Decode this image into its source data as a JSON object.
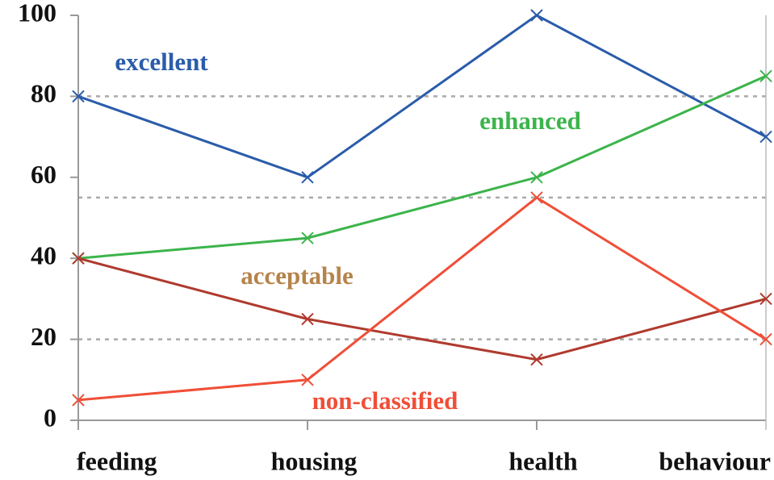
{
  "chart_data": {
    "type": "line",
    "categories": [
      "feeding",
      "housing",
      "health",
      "behaviour"
    ],
    "series": [
      {
        "name": "excellent",
        "color": "#2a5caa",
        "label_color": "#2a5caa",
        "values": [
          80,
          60,
          100,
          70
        ]
      },
      {
        "name": "enhanced",
        "color": "#3cb44b",
        "label_color": "#3cb44b",
        "values": [
          40,
          45,
          60,
          85
        ]
      },
      {
        "name": "acceptable",
        "color": "#b03a2e",
        "label_color": "#b5834a",
        "values": [
          40,
          25,
          15,
          30
        ]
      },
      {
        "name": "non-classified",
        "color": "#f04e37",
        "label_color": "#f04e37",
        "values": [
          5,
          10,
          55,
          20
        ]
      }
    ],
    "ylim": [
      0,
      100
    ],
    "yticks": [
      0,
      20,
      40,
      60,
      80,
      100
    ],
    "reference_lines": [
      20,
      55,
      80
    ]
  }
}
